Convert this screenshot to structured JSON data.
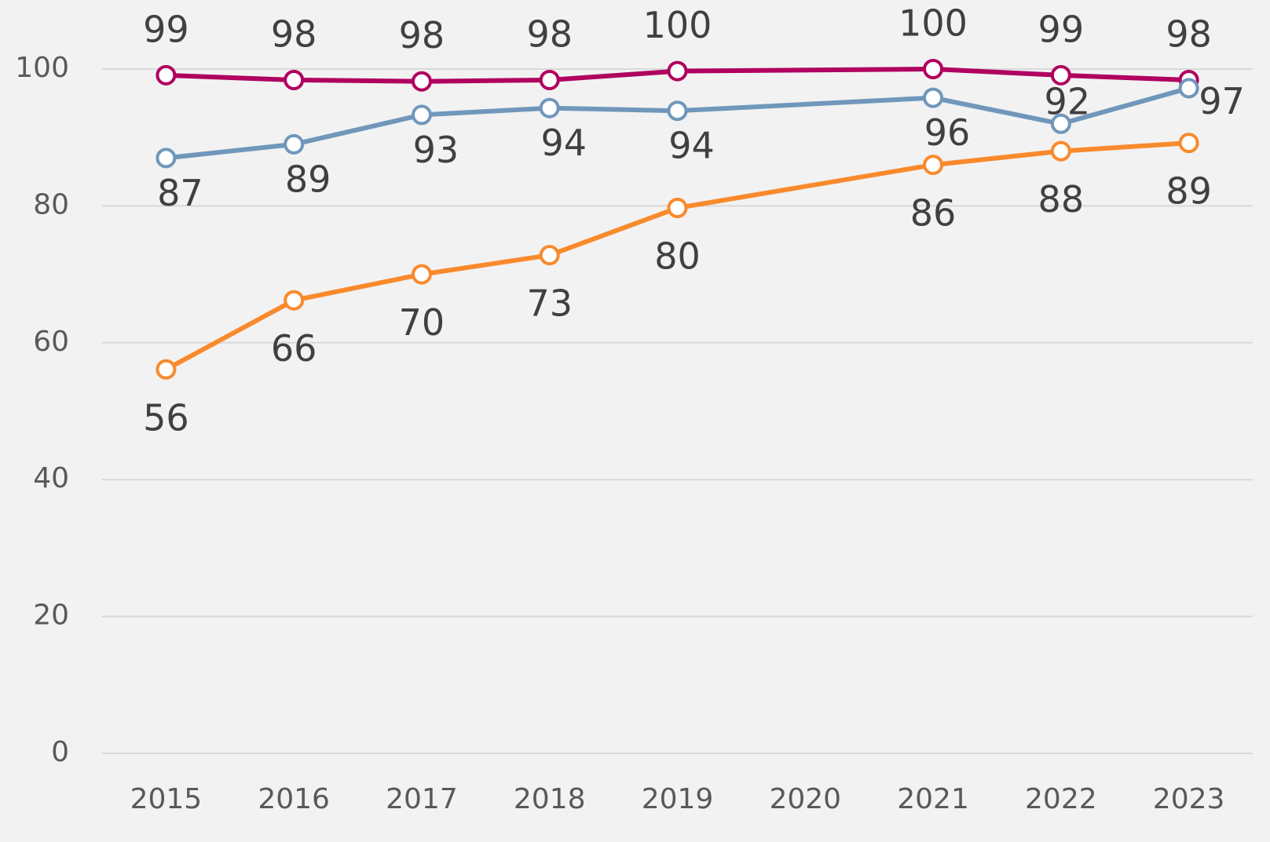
{
  "chart_data": {
    "type": "line",
    "x": [
      2015,
      2016,
      2017,
      2018,
      2019,
      2021,
      2022,
      2023
    ],
    "xlim": [
      2014.5,
      2023.5
    ],
    "xticks": [
      2015,
      2016,
      2017,
      2018,
      2019,
      2020,
      2021,
      2022,
      2023
    ],
    "ylim": [
      0,
      100
    ],
    "yticks": [
      0,
      20,
      40,
      60,
      80,
      100
    ],
    "grid": true,
    "series": [
      {
        "color": "#b0005f",
        "values": [
          99.1,
          98.4,
          98.2,
          98.4,
          99.7,
          100,
          99.1,
          98.4
        ],
        "value_labels": [
          "99",
          "98",
          "98",
          "98",
          "100",
          "100",
          "99",
          "98"
        ]
      },
      {
        "color": "#7097bb",
        "values": [
          87,
          89,
          93.3,
          94.3,
          93.9,
          95.8,
          92,
          97.2
        ],
        "value_labels": [
          "87",
          "89",
          "93",
          "94",
          "94",
          "96",
          "92",
          "97"
        ]
      },
      {
        "color": "#f98a2c",
        "values": [
          56.1,
          66.2,
          70,
          72.8,
          79.7,
          86,
          88,
          89.2
        ],
        "value_labels": [
          "56",
          "66",
          "70",
          "73",
          "80",
          "86",
          "88",
          "89"
        ]
      }
    ]
  }
}
